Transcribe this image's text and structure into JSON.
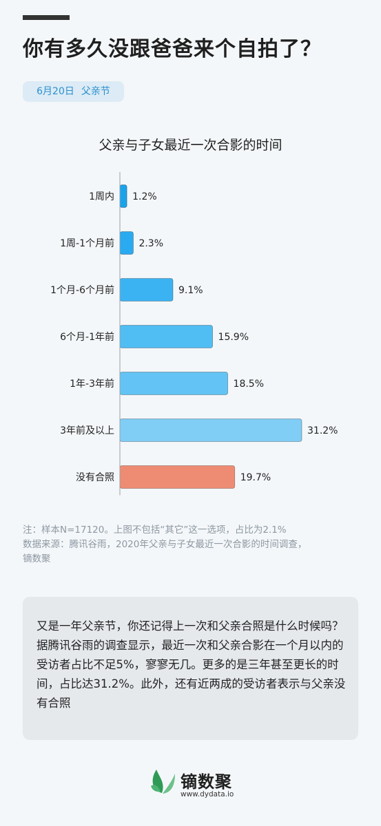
{
  "headline": "你有多久没跟爸爸来个自拍了？",
  "tag": {
    "date": "6月20日",
    "event": "父亲节"
  },
  "chart_data": {
    "type": "bar",
    "orientation": "horizontal",
    "title": "父亲与子女最近一次合影的时间",
    "categories": [
      "1周内",
      "1周-1个月前",
      "1个月-6个月前",
      "6个月-1年前",
      "1年-3年前",
      "3年前及以上",
      "没有合照"
    ],
    "values": [
      1.2,
      2.3,
      9.1,
      15.9,
      18.5,
      31.2,
      19.7
    ],
    "value_labels": [
      "1.2%",
      "2.3%",
      "9.1%",
      "15.9%",
      "18.5%",
      "31.2%",
      "19.7%"
    ],
    "unit": "%",
    "colors": [
      "#1aa3ea",
      "#2aaaf0",
      "#3bb3f2",
      "#50bdf3",
      "#62c3f4",
      "#80cdf5",
      "#ee8c73"
    ],
    "xlim": [
      0,
      31.2
    ],
    "grid": false,
    "legend": "none"
  },
  "notes": {
    "line1": "注：样本N=17120。上图不包括“其它”这一选项，占比为2.1%",
    "line2": "数据来源：腾讯谷雨，2020年父亲与子女最近一次合影的时间调查，",
    "line3": "镝数聚"
  },
  "summary": "又是一年父亲节，你还记得上一次和父亲合照是什么时候吗？据腾讯谷雨的调查显示，最近一次和父亲合影在一个月以内的受访者占比不足5%，寥寥无几。更多的是三年甚至更长的时间，占比达31.2%。此外，还有近两成的受访者表示与父亲没有合照",
  "brand": {
    "name": "镝数聚",
    "url": "www.dydata.io",
    "icon": "leaf-logo-icon",
    "colors": [
      "#2e9a56",
      "#6cc18a"
    ]
  }
}
